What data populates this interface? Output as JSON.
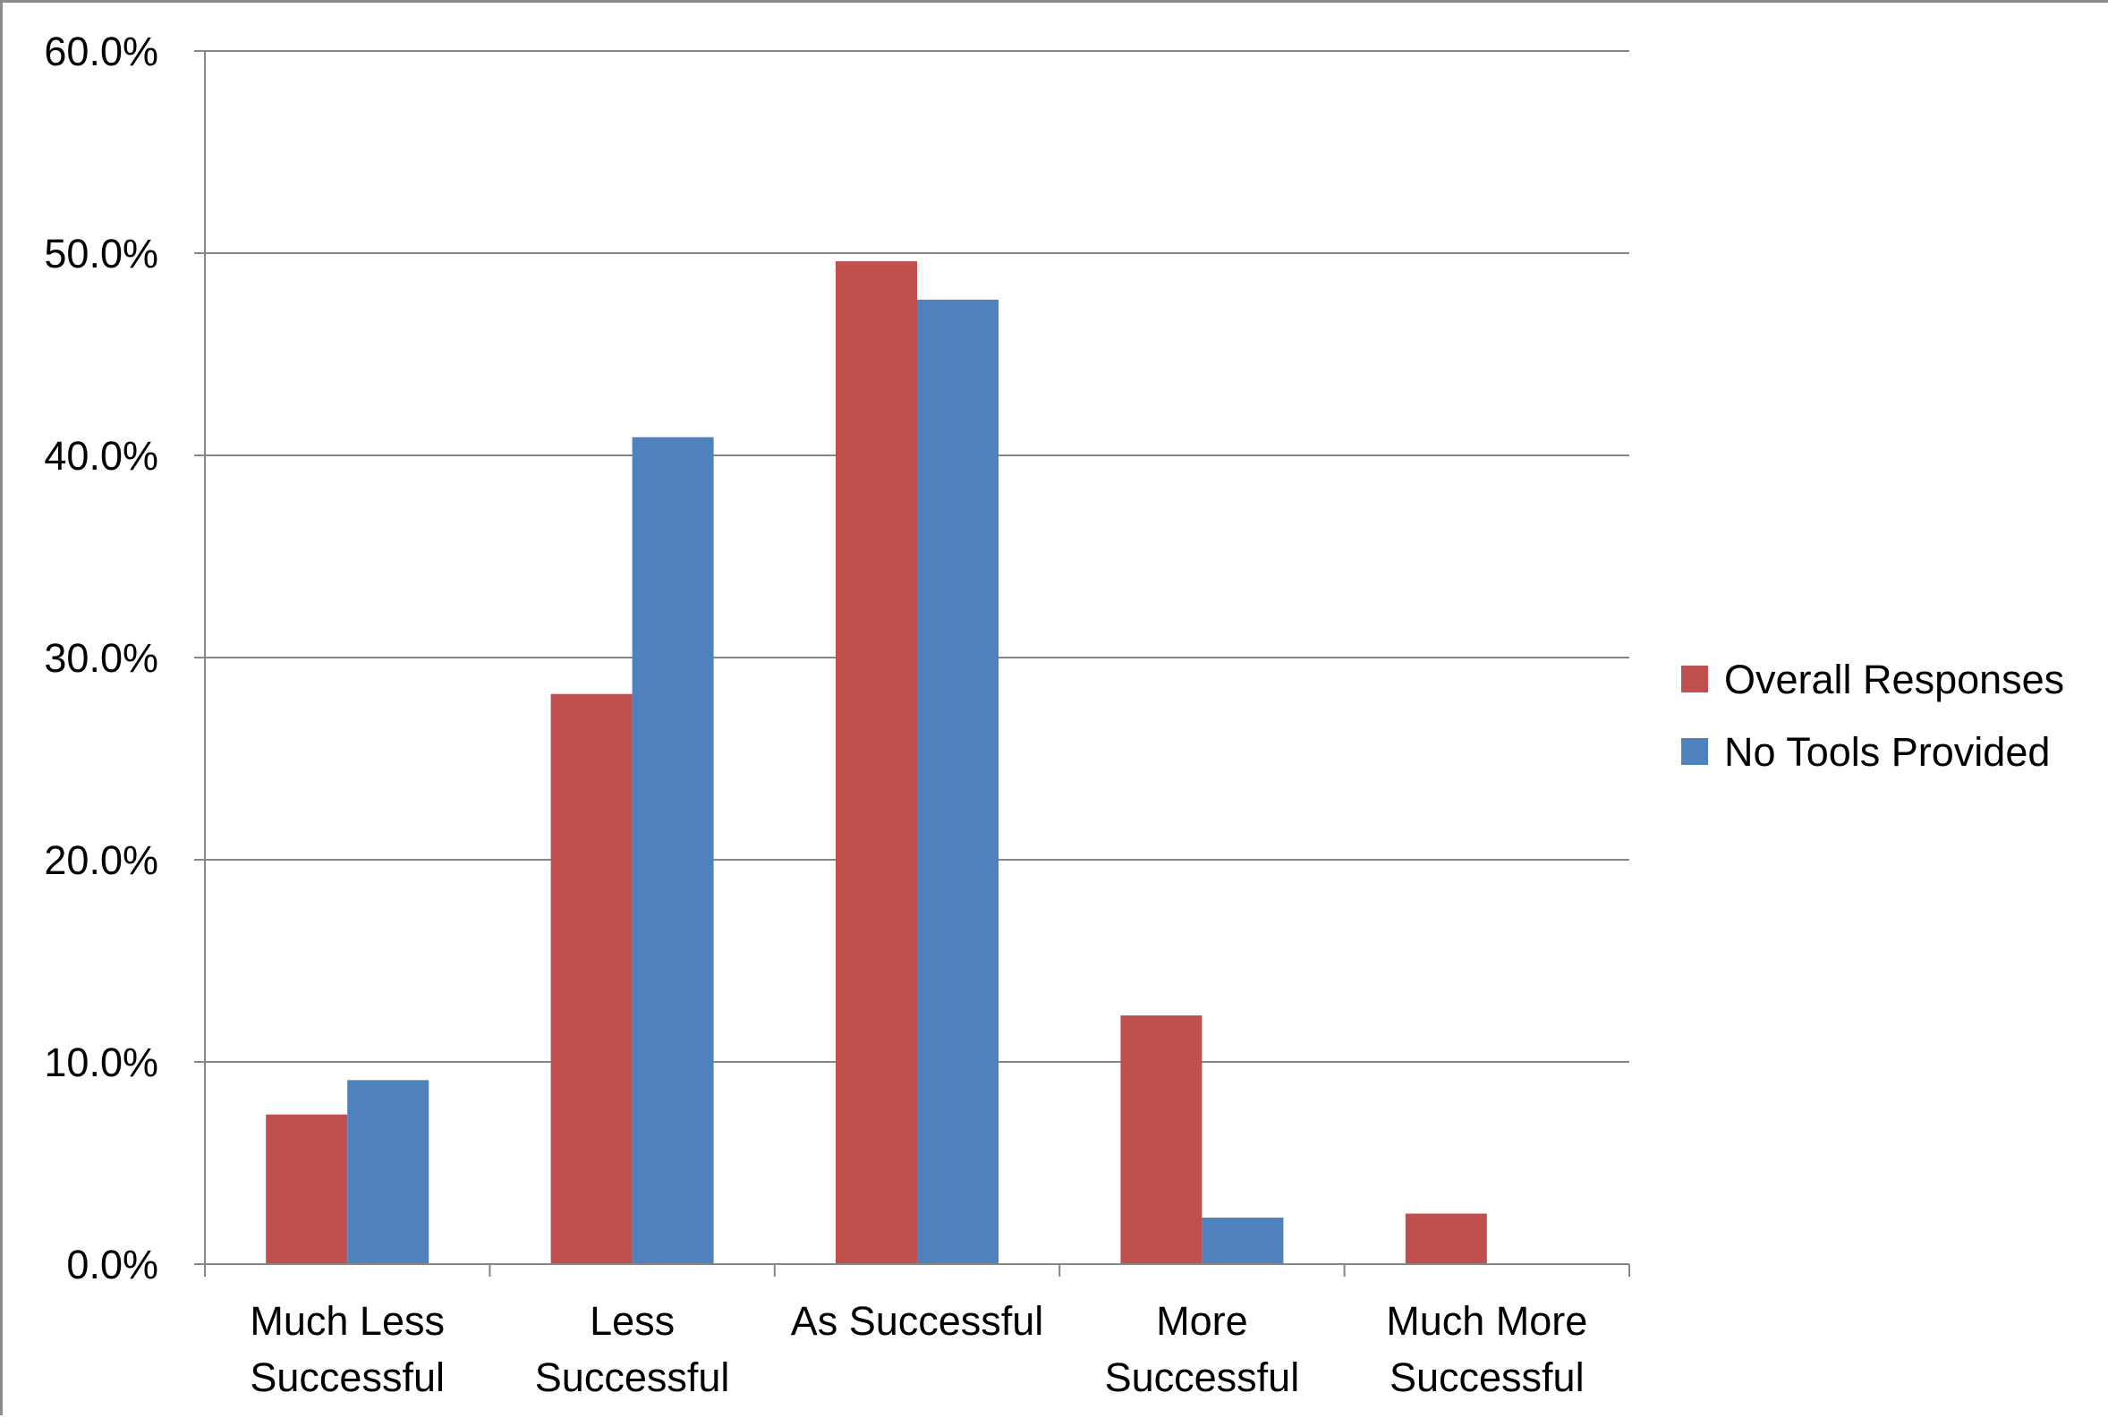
{
  "chart_data": {
    "type": "bar",
    "categories": [
      [
        "Much Less",
        "Successful"
      ],
      [
        "Less",
        "Successful"
      ],
      [
        "As Successful"
      ],
      [
        "More",
        "Successful"
      ],
      [
        "Much More",
        "Successful"
      ]
    ],
    "series": [
      {
        "name": "Overall Responses",
        "color": "#c0504d",
        "values": [
          7.4,
          28.2,
          49.6,
          12.3,
          2.5
        ]
      },
      {
        "name": "No Tools Provided",
        "color": "#4f81bd",
        "values": [
          9.1,
          40.9,
          47.7,
          2.3,
          0.0
        ]
      }
    ],
    "y_ticks": [
      "0.0%",
      "10.0%",
      "20.0%",
      "30.0%",
      "40.0%",
      "50.0%",
      "60.0%"
    ],
    "ylim": [
      0,
      60
    ],
    "y_tick_step": 10,
    "grid": true,
    "legend_position": "right",
    "axis_color": "#868686",
    "gridline_color": "#868686"
  }
}
